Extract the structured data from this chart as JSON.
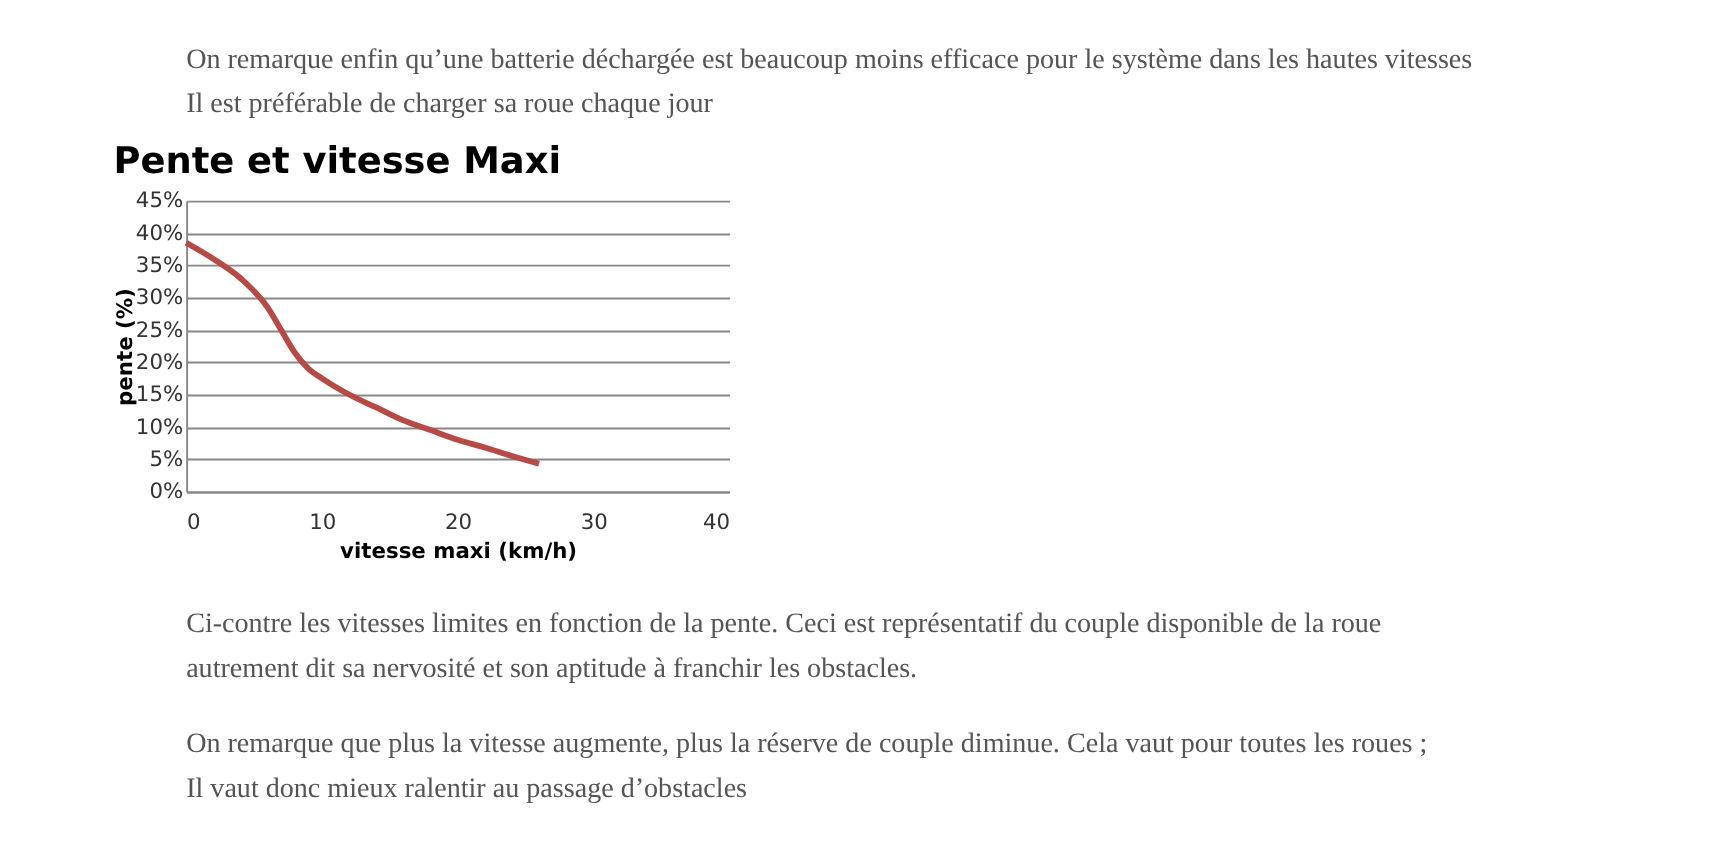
{
  "chart_data": {
    "type": "line",
    "title": "Pente et vitesse Maxi",
    "xlabel": "vitesse maxi (km/h)",
    "ylabel": "pente (%)",
    "x": [
      0,
      2,
      4,
      6,
      7,
      8,
      9,
      10,
      12,
      14,
      16,
      18,
      20,
      22,
      24,
      26
    ],
    "series": [
      {
        "color": "#b84a45",
        "values": [
          38.5,
          36,
          33,
          28.5,
          25,
          21.5,
          19,
          17.5,
          15,
          13,
          11,
          9.5,
          8,
          6.8,
          5.5,
          4.3
        ]
      }
    ],
    "xlim": [
      0,
      40
    ],
    "xticks": [
      0,
      10,
      20,
      30,
      40
    ],
    "ylim": [
      0,
      45
    ],
    "yticks": [
      {
        "value": 0,
        "label": "0%"
      },
      {
        "value": 5,
        "label": "5%"
      },
      {
        "value": 10,
        "label": "10%"
      },
      {
        "value": 15,
        "label": "15%"
      },
      {
        "value": 20,
        "label": "20%"
      },
      {
        "value": 25,
        "label": "25%"
      },
      {
        "value": 30,
        "label": "30%"
      },
      {
        "value": 35,
        "label": "35%"
      },
      {
        "value": 40,
        "label": "40%"
      },
      {
        "value": 45,
        "label": "45%"
      }
    ],
    "grid": "y",
    "marker": "none",
    "line_style": "solid",
    "annotations": [
      "On remarque enfin qu’une batterie déchargée est beaucoup moins efficace pour le système dans les hautes vitesses Il est préférable de charger sa roue chaque jour",
      "Ci-contre les vitesses limites en fonction de la pente. Ceci est représentatif du couple disponible de la roue autrement dit sa nervosité et son aptitude à franchir les obstacles.",
      "On remarque que plus la vitesse augmente, plus la réserve de couple diminue. Cela vaut pour toutes les roues ; Il vaut donc mieux ralentir au passage d’obstacles"
    ]
  }
}
